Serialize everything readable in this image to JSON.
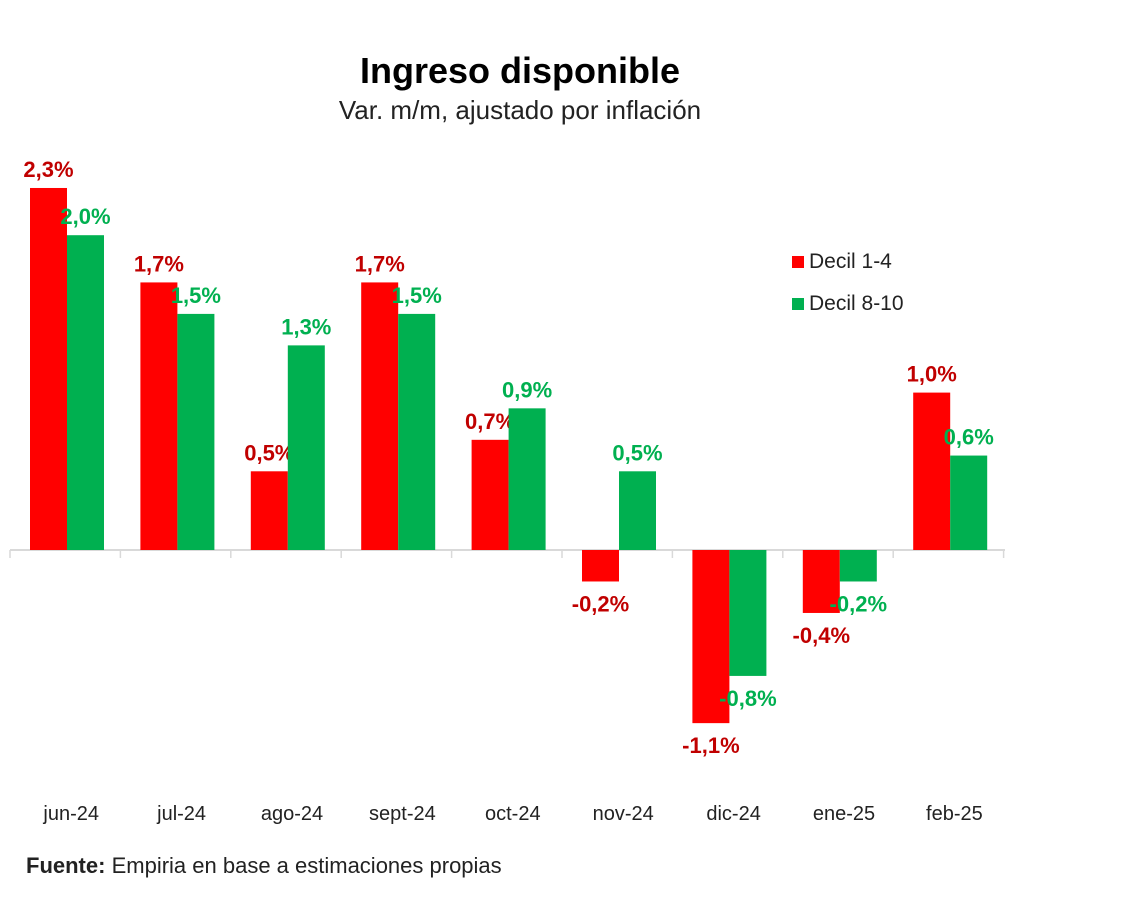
{
  "chart_data": {
    "type": "bar",
    "title": "Ingreso disponible",
    "subtitle": "Var. m/m, ajustado por inflación",
    "categories": [
      "jun-24",
      "jul-24",
      "ago-24",
      "sept-24",
      "oct-24",
      "nov-24",
      "dic-24",
      "ene-25",
      "feb-25"
    ],
    "series": [
      {
        "name": "Decil 1-4",
        "color": "#ff0000",
        "label_color": "#c00000",
        "values": [
          2.3,
          1.7,
          0.5,
          1.7,
          0.7,
          -0.2,
          -1.1,
          -0.4,
          1.0
        ],
        "labels": [
          "2,3%",
          "1,7%",
          "0,5%",
          "1,7%",
          "0,7%",
          "-0,2%",
          "-1,1%",
          "-0,4%",
          "1,0%"
        ]
      },
      {
        "name": "Decil 8-10",
        "color": "#00b050",
        "label_color": "#00b050",
        "values": [
          2.0,
          1.5,
          1.3,
          1.5,
          0.9,
          0.5,
          -0.8,
          -0.2,
          0.6
        ],
        "labels": [
          "2,0%",
          "1,5%",
          "1,3%",
          "1,5%",
          "0,9%",
          "0,5%",
          "-0,8%",
          "-0,2%",
          "0,6%"
        ]
      }
    ],
    "legend_position": "top-right",
    "grid": false,
    "xlabel": "",
    "ylabel": ""
  },
  "source": {
    "label": "Fuente:",
    "text": "Empiria en base a estimaciones propias"
  }
}
